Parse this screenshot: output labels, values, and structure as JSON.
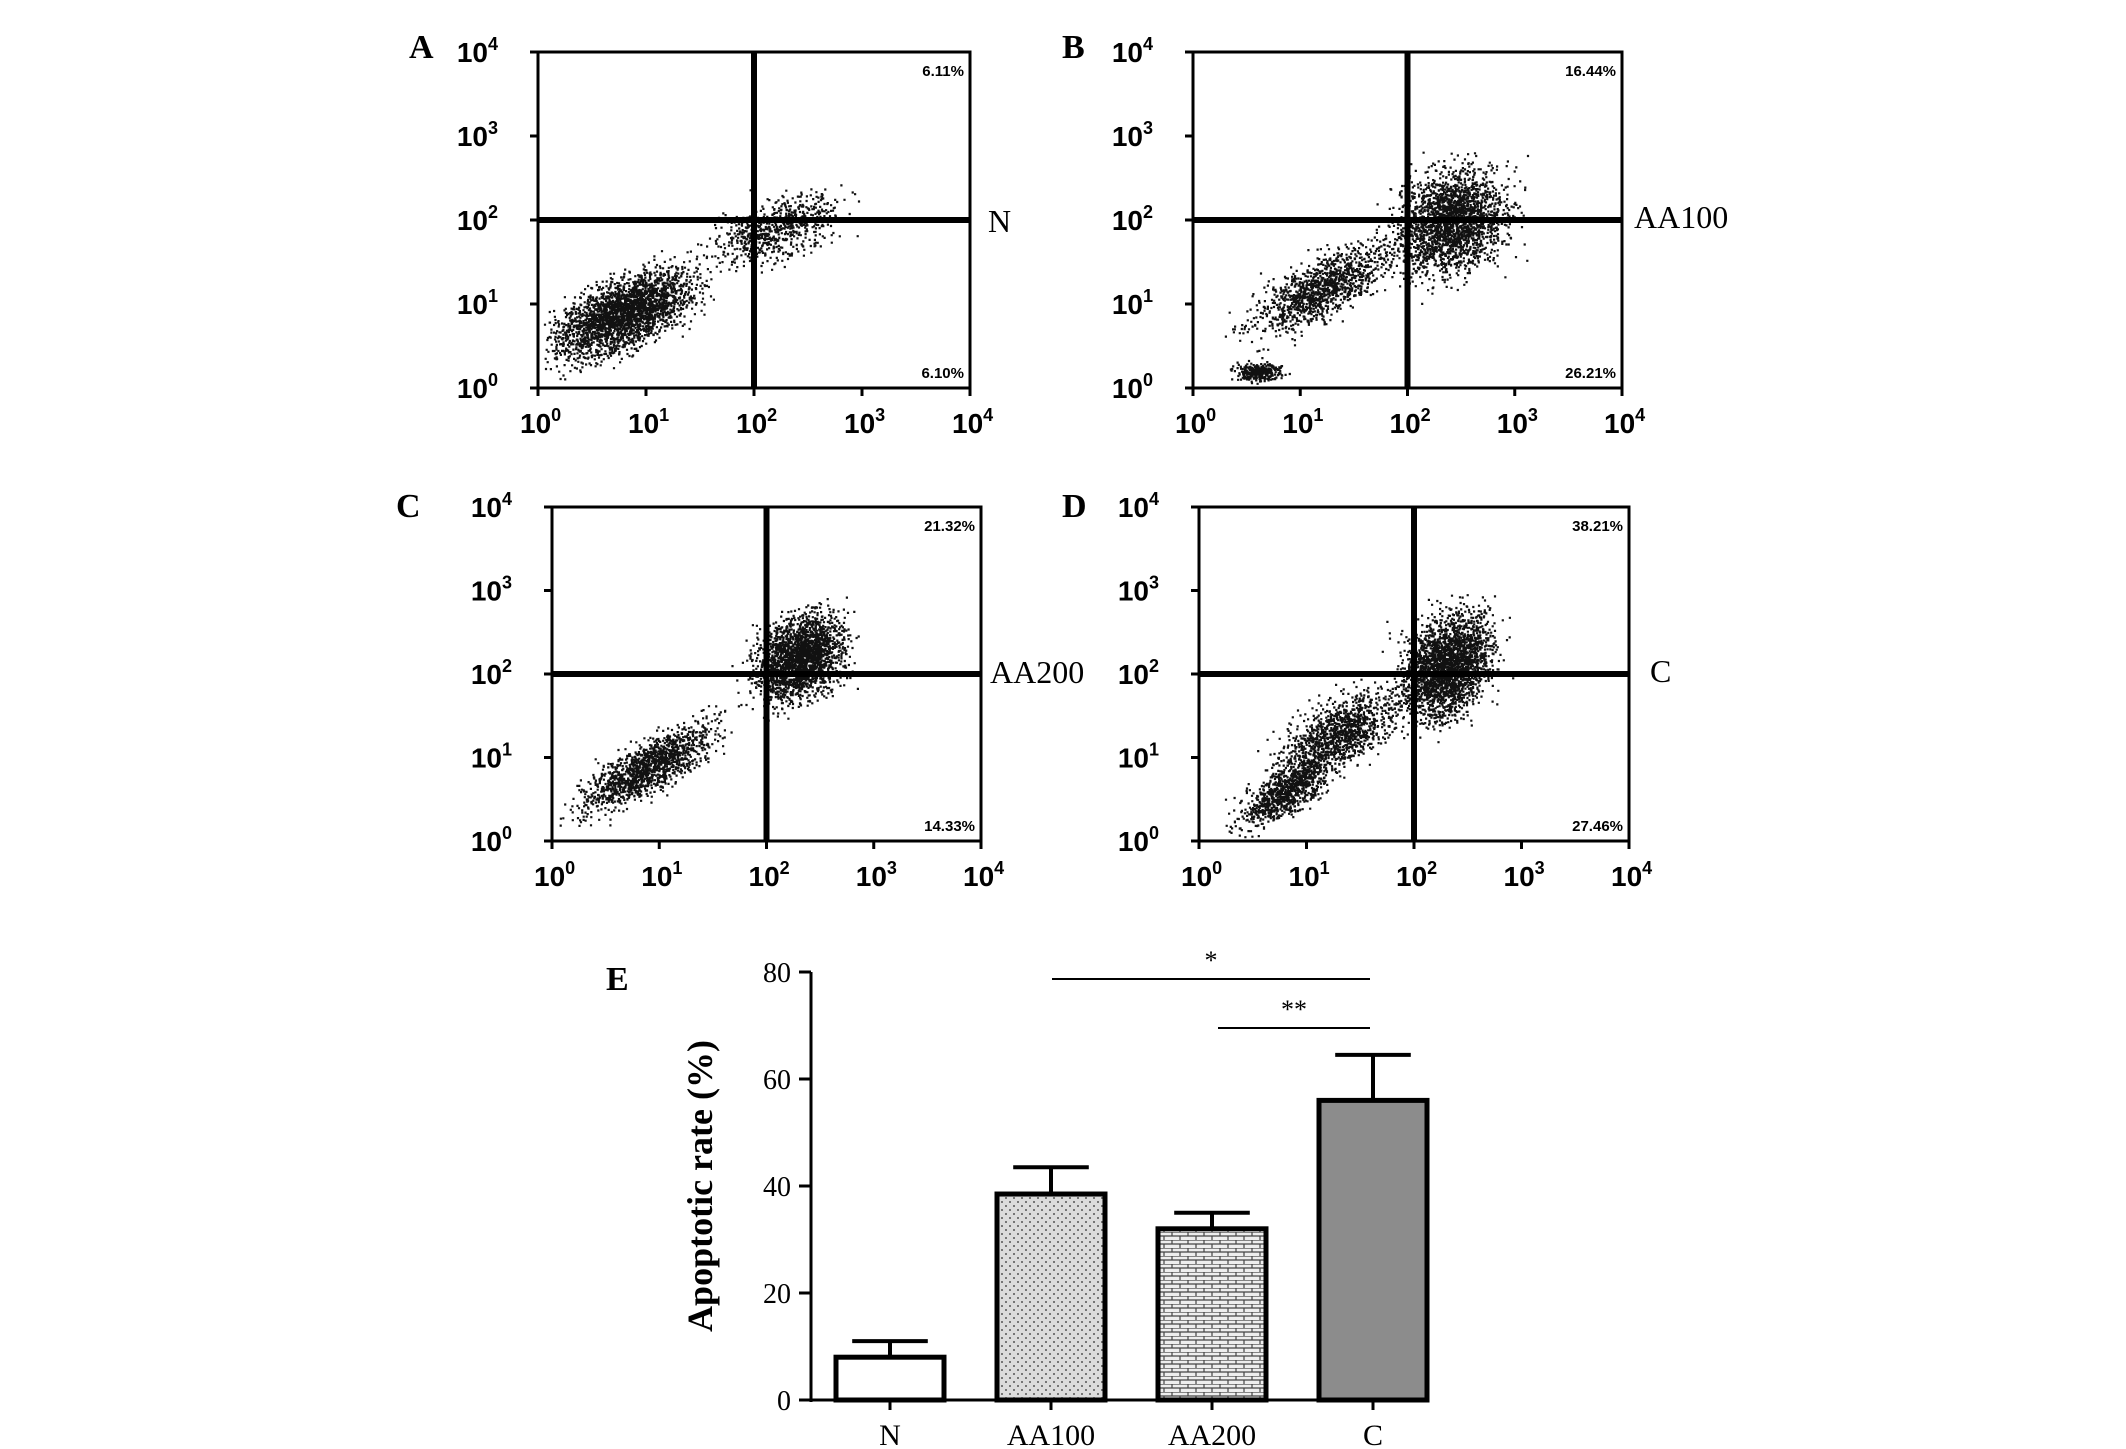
{
  "chart_data": [
    {
      "type": "scatter",
      "panel": "A",
      "label": "N",
      "xscale": "log",
      "yscale": "log",
      "xlim": [
        1,
        10000
      ],
      "ylim": [
        1,
        10000
      ],
      "xticks": [
        "10",
        "10",
        "10",
        "10",
        "10"
      ],
      "xtick_exp": [
        "0",
        "1",
        "2",
        "3",
        "4"
      ],
      "gate": [
        100,
        100
      ],
      "quadrants": {
        "upper_right": "6.11%",
        "lower_right": "6.10%"
      }
    },
    {
      "type": "scatter",
      "panel": "B",
      "label": "AA100",
      "xscale": "log",
      "yscale": "log",
      "xlim": [
        1,
        10000
      ],
      "ylim": [
        1,
        10000
      ],
      "xticks": [
        "10",
        "10",
        "10",
        "10",
        "10"
      ],
      "xtick_exp": [
        "0",
        "1",
        "2",
        "3",
        "4"
      ],
      "gate": [
        100,
        100
      ],
      "quadrants": {
        "upper_right": "16.44%",
        "lower_right": "26.21%"
      }
    },
    {
      "type": "scatter",
      "panel": "C",
      "label": "AA200",
      "xscale": "log",
      "yscale": "log",
      "xlim": [
        1,
        10000
      ],
      "ylim": [
        1,
        10000
      ],
      "xticks": [
        "10",
        "10",
        "10",
        "10",
        "10"
      ],
      "xtick_exp": [
        "0",
        "1",
        "2",
        "3",
        "4"
      ],
      "gate": [
        100,
        100
      ],
      "quadrants": {
        "upper_right": "21.32%",
        "lower_right": "14.33%"
      }
    },
    {
      "type": "scatter",
      "panel": "D",
      "label": "C",
      "xscale": "log",
      "yscale": "log",
      "xlim": [
        1,
        10000
      ],
      "ylim": [
        1,
        10000
      ],
      "xticks": [
        "10",
        "10",
        "10",
        "10",
        "10"
      ],
      "xtick_exp": [
        "0",
        "1",
        "2",
        "3",
        "4"
      ],
      "gate": [
        100,
        100
      ],
      "quadrants": {
        "upper_right": "38.21%",
        "lower_right": "27.46%"
      }
    },
    {
      "type": "bar",
      "panel": "E",
      "categories": [
        "N",
        "AA100",
        "AA200",
        "C"
      ],
      "values": [
        8,
        38.5,
        32,
        56
      ],
      "errors": [
        3,
        5,
        3,
        8.5
      ],
      "ylabel": "Apoptotic rate (%)",
      "ylim": [
        0,
        80
      ],
      "yticks": [
        "0",
        "20",
        "40",
        "60",
        "80"
      ],
      "fills": [
        "#ffffff",
        "#dcdcdc",
        "#e8e8e8",
        "#8c8c8c"
      ],
      "significance": [
        {
          "from": "AA100",
          "to": "C",
          "label": "*"
        },
        {
          "from": "AA200",
          "to": "C",
          "label": "**"
        }
      ]
    }
  ]
}
